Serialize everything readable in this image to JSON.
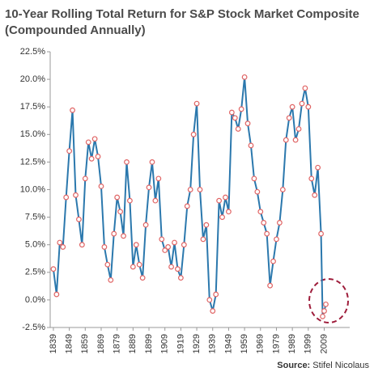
{
  "chart_data": {
    "type": "line",
    "title": "10-Year Rolling Total Return for S&P Stock Market Composite",
    "subtitle": "(Compounded Annually)",
    "source_label": "Source:",
    "source": "Stifel Nicolaus",
    "color": "#2b78ad",
    "marker_color": "#e06464",
    "x": [
      1839,
      1841,
      1843,
      1845,
      1847,
      1849,
      1851,
      1853,
      1855,
      1857,
      1859,
      1861,
      1863,
      1865,
      1867,
      1869,
      1871,
      1873,
      1875,
      1877,
      1879,
      1881,
      1883,
      1885,
      1887,
      1889,
      1891,
      1893,
      1895,
      1897,
      1899,
      1901,
      1903,
      1905,
      1907,
      1909,
      1911,
      1913,
      1915,
      1917,
      1919,
      1921,
      1923,
      1925,
      1927,
      1929,
      1931,
      1933,
      1935,
      1937,
      1939,
      1941,
      1943,
      1945,
      1947,
      1949,
      1951,
      1953,
      1955,
      1957,
      1959,
      1961,
      1963,
      1965,
      1967,
      1969,
      1971,
      1973,
      1975,
      1977,
      1979,
      1981,
      1983,
      1985,
      1987,
      1989,
      1991,
      1993,
      1995,
      1997,
      1999,
      2001,
      2003,
      2005,
      2007,
      2008,
      2009,
      2010
    ],
    "values": [
      2.8,
      0.5,
      5.2,
      4.8,
      9.3,
      13.5,
      17.2,
      9.5,
      7.3,
      5.0,
      11.0,
      14.3,
      12.8,
      14.6,
      13.0,
      10.3,
      4.8,
      3.2,
      1.8,
      6.0,
      9.3,
      8.0,
      5.8,
      12.5,
      9.0,
      3.0,
      5.0,
      3.2,
      2.0,
      6.8,
      10.2,
      12.5,
      9.0,
      11.0,
      5.5,
      4.5,
      4.8,
      3.0,
      5.2,
      2.8,
      2.0,
      5.0,
      8.5,
      10.0,
      15.0,
      17.8,
      10.0,
      5.5,
      6.8,
      0.0,
      -1.0,
      0.5,
      9.0,
      7.5,
      9.3,
      8.0,
      17.0,
      16.5,
      15.5,
      17.3,
      20.2,
      16.0,
      14.0,
      11.0,
      9.8,
      8.0,
      7.0,
      6.0,
      1.3,
      3.5,
      5.5,
      7.0,
      10.0,
      14.5,
      16.5,
      17.5,
      14.5,
      15.5,
      17.8,
      19.2,
      17.5,
      11.0,
      9.5,
      12.0,
      6.0,
      -1.5,
      -1.0,
      -0.4
    ],
    "xlim": [
      1837,
      2025
    ],
    "ylim": [
      -2.5,
      22.5
    ],
    "xticks": [
      1839,
      1849,
      1859,
      1869,
      1879,
      1889,
      1899,
      1909,
      1919,
      1929,
      1939,
      1949,
      1959,
      1969,
      1979,
      1989,
      1999,
      2009
    ],
    "yticks": [
      {
        "value": -2.5,
        "label": "-2.5%"
      },
      {
        "value": 0,
        "label": "0.0%"
      },
      {
        "value": 2.5,
        "label": "2.5%"
      },
      {
        "value": 5,
        "label": "5.0%"
      },
      {
        "value": 7.5,
        "label": "7.5%"
      },
      {
        "value": 10,
        "label": "10.0%"
      },
      {
        "value": 12.5,
        "label": "12.5%"
      },
      {
        "value": 15,
        "label": "15.0%"
      },
      {
        "value": 17.5,
        "label": "17.5%"
      },
      {
        "value": 20,
        "label": "20.0%"
      },
      {
        "value": 22.5,
        "label": "22.5%"
      }
    ]
  }
}
